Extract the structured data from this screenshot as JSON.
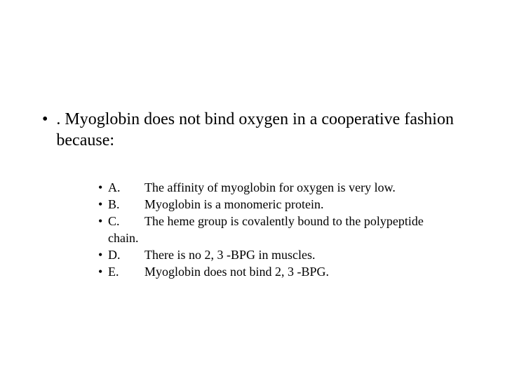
{
  "question": {
    "bullet": "•",
    "text": ". Myoglobin does not bind oxygen in a cooperative fashion because:"
  },
  "options": [
    {
      "bullet": "•",
      "letter": "A.",
      "text": "The affinity of myoglobin for oxygen is very low."
    },
    {
      "bullet": "•",
      "letter": "B.",
      "text": "Myoglobin is a monomeric protein."
    },
    {
      "bullet": "•",
      "letter": "C.",
      "text": "The heme group is covalently bound to the polypeptide",
      "continuation": "chain."
    },
    {
      "bullet": "•",
      "letter": "D.",
      "text": "There is no 2, 3 -BPG in muscles."
    },
    {
      "bullet": "•",
      "letter": "E.",
      "text": "Myoglobin does not bind 2, 3 -BPG."
    }
  ],
  "style": {
    "background_color": "#ffffff",
    "text_color": "#000000",
    "question_fontsize": 24,
    "option_fontsize": 18,
    "font_family": "Times New Roman"
  }
}
